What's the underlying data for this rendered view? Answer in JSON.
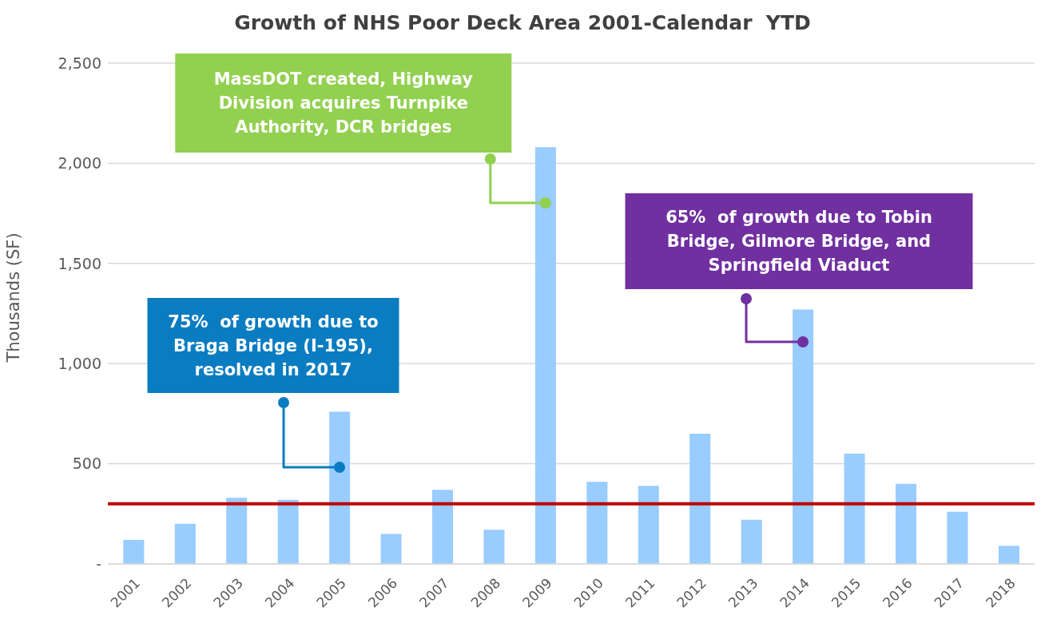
{
  "chart_data": {
    "type": "bar",
    "title": "Growth of NHS Poor Deck Area 2001-Calendar  YTD",
    "ylabel": "Thousands (SF)",
    "categories": [
      "2001",
      "2002",
      "2003",
      "2004",
      "2005",
      "2006",
      "2007",
      "2008",
      "2009",
      "2010",
      "2011",
      "2012",
      "2013",
      "2014",
      "2015",
      "2016",
      "2017",
      "2018"
    ],
    "values": [
      120,
      200,
      330,
      320,
      760,
      150,
      370,
      170,
      2080,
      410,
      390,
      650,
      220,
      1270,
      550,
      400,
      260,
      90
    ],
    "color": "#99ccff",
    "ylim": [
      0,
      2500
    ],
    "yticks": [
      {
        "value": 0,
        "label": "-"
      },
      500,
      {
        "value": 1000,
        "label": "1,000"
      },
      {
        "value": 1500,
        "label": "1,500"
      },
      {
        "value": 2000,
        "label": "2,000"
      },
      {
        "value": 2500,
        "label": "2,500"
      }
    ],
    "grid": "y",
    "legend": false,
    "ref_lines": [
      {
        "axis": "y",
        "value": 300,
        "color": "#c00000"
      }
    ],
    "annotations": [
      "75%  of growth due to Braga Bridge (I-195), resolved in 2017",
      "MassDOT created, Highway Division acquires Turnpike Authority, DCR bridges",
      "65%  of growth due to Tobin Bridge, Gilmore Bridge, and Springfield Viaduct"
    ]
  }
}
